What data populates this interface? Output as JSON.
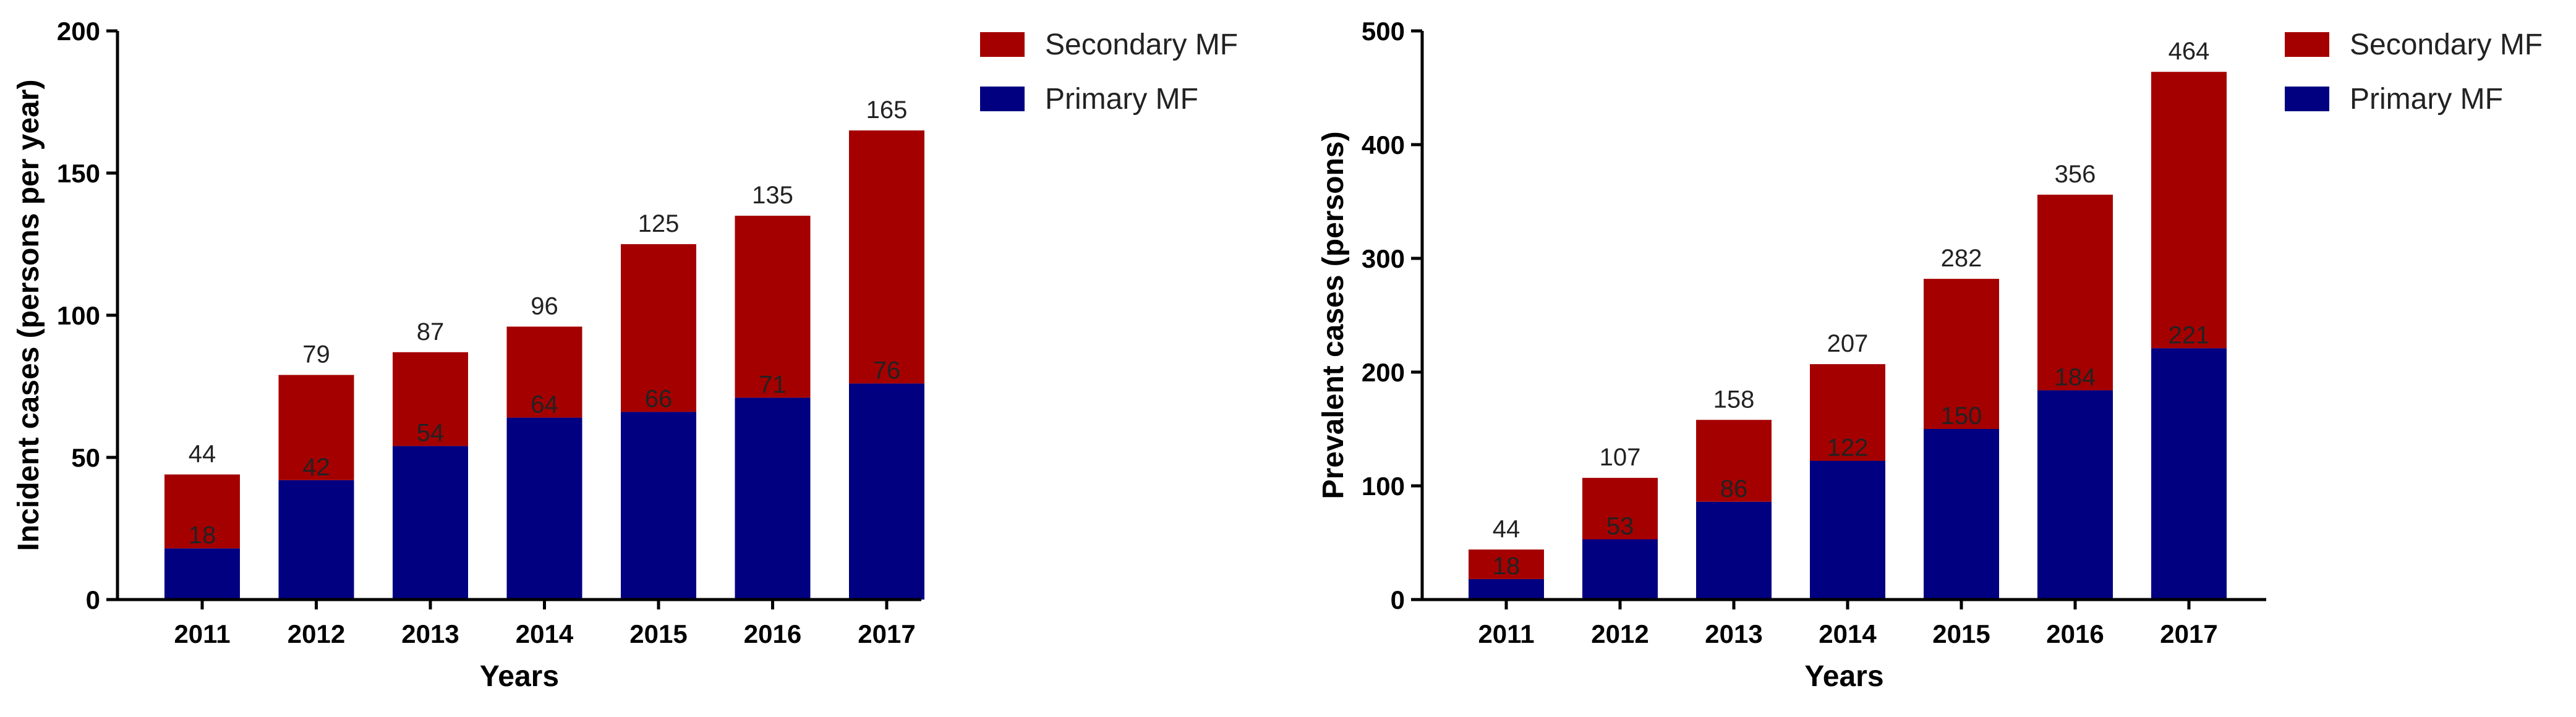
{
  "chart_data": [
    {
      "type": "bar",
      "stacked": true,
      "categories": [
        "2011",
        "2012",
        "2013",
        "2014",
        "2015",
        "2016",
        "2017"
      ],
      "series": [
        {
          "name": "Primary MF",
          "values": [
            18,
            42,
            54,
            64,
            66,
            71,
            76
          ],
          "color": "#000080"
        },
        {
          "name": "Secondary MF",
          "values": [
            26,
            37,
            33,
            32,
            59,
            64,
            89
          ],
          "color": "#a50000"
        }
      ],
      "segment_labels": [
        "18",
        "42",
        "54",
        "64",
        "66",
        "71",
        "76"
      ],
      "total_labels": [
        "44",
        "79",
        "87",
        "96",
        "125",
        "135",
        "165"
      ],
      "xlabel": "Years",
      "ylabel": "Incident cases (persons per year)",
      "ylim": [
        0,
        200
      ],
      "yticks": [
        0,
        50,
        100,
        150,
        200
      ],
      "legend": [
        "Secondary MF",
        "Primary MF"
      ],
      "legend_position": "top-right",
      "grid": false
    },
    {
      "type": "bar",
      "stacked": true,
      "categories": [
        "2011",
        "2012",
        "2013",
        "2014",
        "2015",
        "2016",
        "2017"
      ],
      "series": [
        {
          "name": "Primary MF",
          "values": [
            18,
            53,
            86,
            122,
            150,
            184,
            221
          ],
          "color": "#000080"
        },
        {
          "name": "Secondary MF",
          "values": [
            26,
            54,
            72,
            85,
            132,
            172,
            243
          ],
          "color": "#a50000"
        }
      ],
      "segment_labels": [
        "18",
        "53",
        "86",
        "122",
        "150",
        "184",
        "221"
      ],
      "total_labels": [
        "44",
        "107",
        "158",
        "207",
        "282",
        "356",
        "464"
      ],
      "xlabel": "Years",
      "ylabel": "Prevalent cases (persons)",
      "ylim": [
        0,
        500
      ],
      "yticks": [
        0,
        100,
        200,
        300,
        400,
        500
      ],
      "legend": [
        "Secondary MF",
        "Primary MF"
      ],
      "legend_position": "top-right",
      "grid": false
    }
  ]
}
